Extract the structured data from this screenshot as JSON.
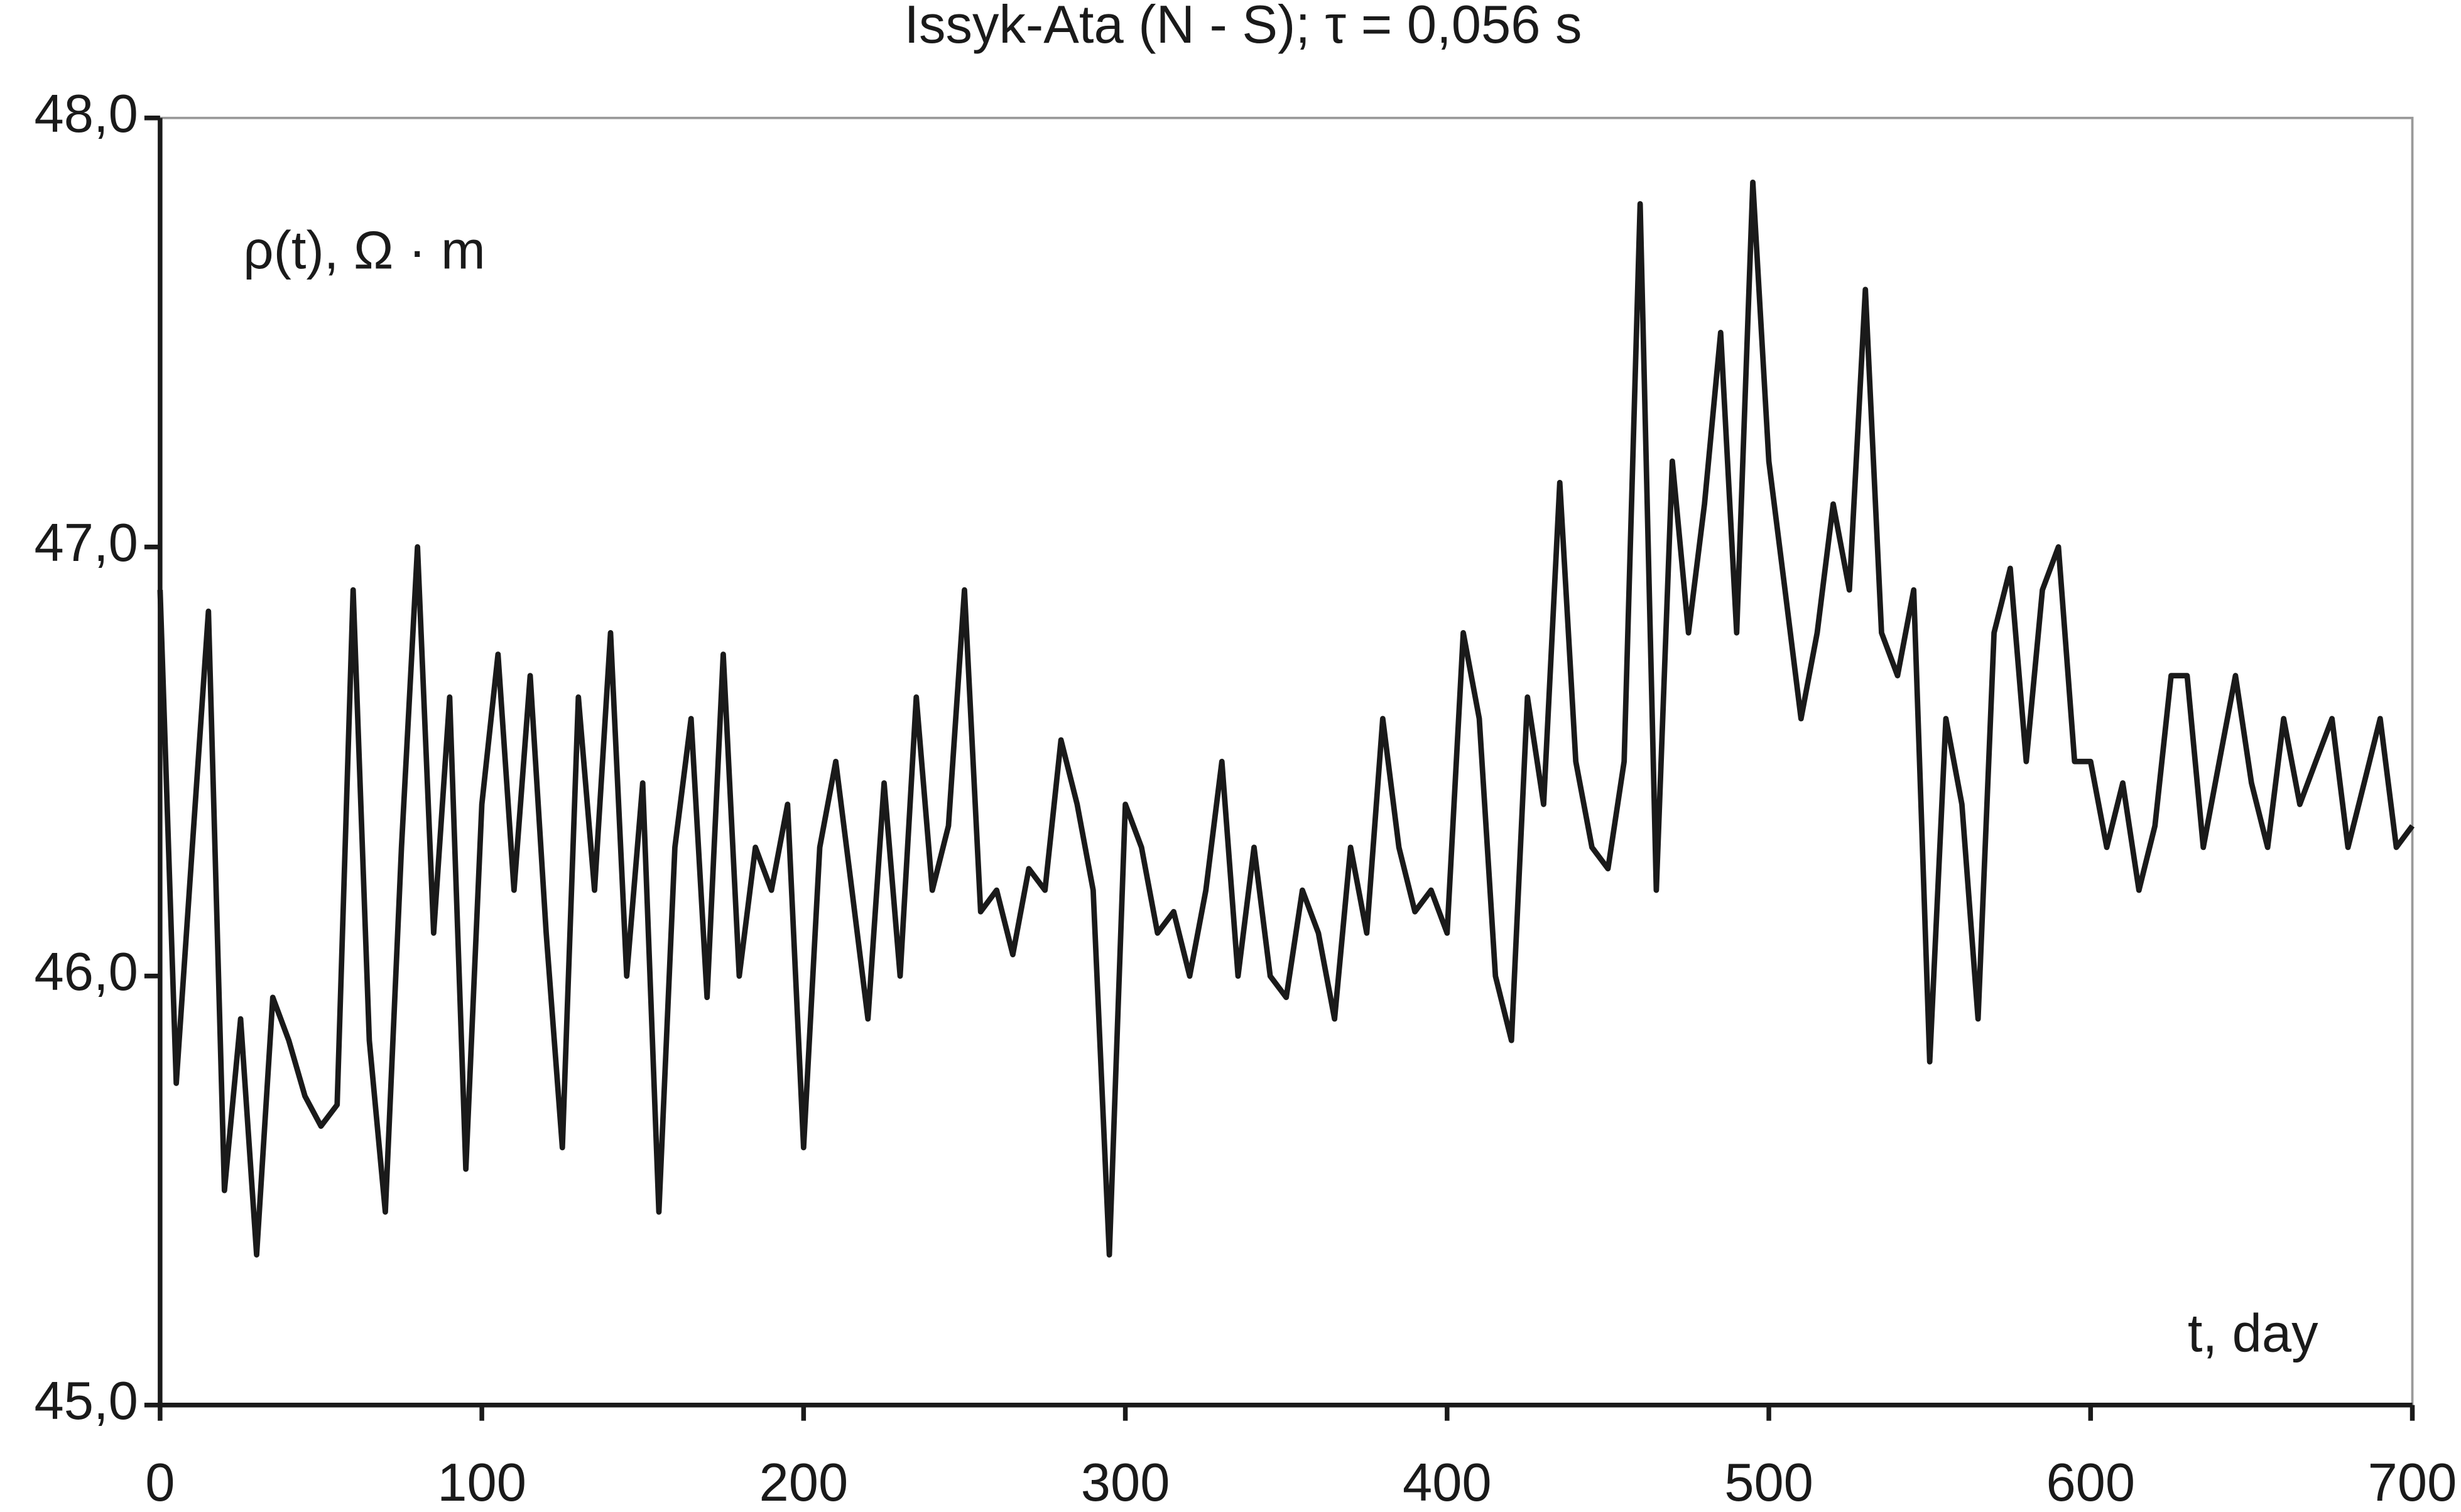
{
  "chart_data": {
    "type": "line",
    "title": "Issyk-Ata (N - S); τ = 0,056 s",
    "y_annotation": "ρ(t), Ω · m",
    "x_annotation": "t, day",
    "x": [
      0,
      5,
      10,
      15,
      20,
      25,
      30,
      35,
      40,
      45,
      50,
      55,
      60,
      65,
      70,
      75,
      80,
      85,
      90,
      95,
      100,
      105,
      110,
      115,
      120,
      125,
      130,
      135,
      140,
      145,
      150,
      155,
      160,
      165,
      170,
      175,
      180,
      185,
      190,
      195,
      200,
      205,
      210,
      215,
      220,
      225,
      230,
      235,
      240,
      245,
      250,
      255,
      260,
      265,
      270,
      275,
      280,
      285,
      290,
      295,
      300,
      305,
      310,
      315,
      320,
      325,
      330,
      335,
      340,
      345,
      350,
      355,
      360,
      365,
      370,
      375,
      380,
      385,
      390,
      395,
      400,
      405,
      410,
      415,
      420,
      425,
      430,
      435,
      440,
      445,
      450,
      455,
      460,
      465,
      470,
      475,
      480,
      485,
      490,
      495,
      500,
      505,
      510,
      515,
      520,
      525,
      530,
      535,
      540,
      545,
      550,
      555,
      560,
      565,
      570,
      575,
      580,
      585,
      590,
      595,
      600,
      605,
      610,
      615,
      620,
      625,
      630,
      635,
      640,
      645,
      650,
      655,
      660,
      665,
      670,
      675,
      680,
      685,
      690,
      695,
      700
    ],
    "series": [
      {
        "color": "#1a1a1a",
        "values": [
          46.9,
          45.75,
          46.3,
          46.85,
          45.5,
          45.9,
          45.35,
          45.95,
          45.85,
          45.72,
          45.65,
          45.7,
          46.9,
          45.85,
          45.45,
          46.3,
          47.0,
          46.1,
          46.65,
          45.55,
          46.4,
          46.75,
          46.2,
          46.7,
          46.1,
          45.6,
          46.65,
          46.2,
          46.8,
          46.0,
          46.45,
          45.45,
          46.3,
          46.6,
          45.95,
          46.75,
          46.0,
          46.3,
          46.2,
          46.4,
          45.6,
          46.3,
          46.5,
          46.2,
          45.9,
          46.45,
          46.0,
          46.65,
          46.2,
          46.35,
          46.9,
          46.15,
          46.2,
          46.05,
          46.25,
          46.2,
          46.55,
          46.4,
          46.2,
          45.35,
          46.4,
          46.3,
          46.1,
          46.15,
          46.0,
          46.2,
          46.5,
          46.0,
          46.3,
          46.0,
          45.95,
          46.2,
          46.1,
          45.9,
          46.3,
          46.1,
          46.6,
          46.3,
          46.15,
          46.2,
          46.1,
          46.8,
          46.6,
          46.0,
          45.85,
          46.65,
          46.4,
          47.15,
          46.5,
          46.3,
          46.25,
          46.5,
          47.8,
          46.2,
          47.2,
          46.8,
          47.1,
          47.5,
          46.8,
          47.85,
          47.2,
          46.9,
          46.6,
          46.8,
          47.1,
          46.9,
          47.6,
          46.8,
          46.7,
          46.9,
          45.8,
          46.6,
          46.4,
          45.9,
          46.8,
          46.95,
          46.5,
          46.9,
          47.0,
          46.5,
          46.5,
          46.3,
          46.45,
          46.2,
          46.35,
          46.7,
          46.7,
          46.3,
          46.5,
          46.7,
          46.45,
          46.3,
          46.6,
          46.4,
          46.5,
          46.6,
          46.3,
          46.45,
          46.6,
          46.3,
          46.35
        ]
      }
    ],
    "xlim": [
      0,
      700
    ],
    "xticks": [
      0,
      100,
      200,
      300,
      400,
      500,
      600,
      700
    ],
    "ylim": [
      45,
      48
    ],
    "yticks": [
      {
        "value": 45,
        "label": "45,0"
      },
      {
        "value": 46,
        "label": "46,0"
      },
      {
        "value": 47,
        "label": "47,0"
      },
      {
        "value": 48,
        "label": "48,0"
      }
    ]
  }
}
